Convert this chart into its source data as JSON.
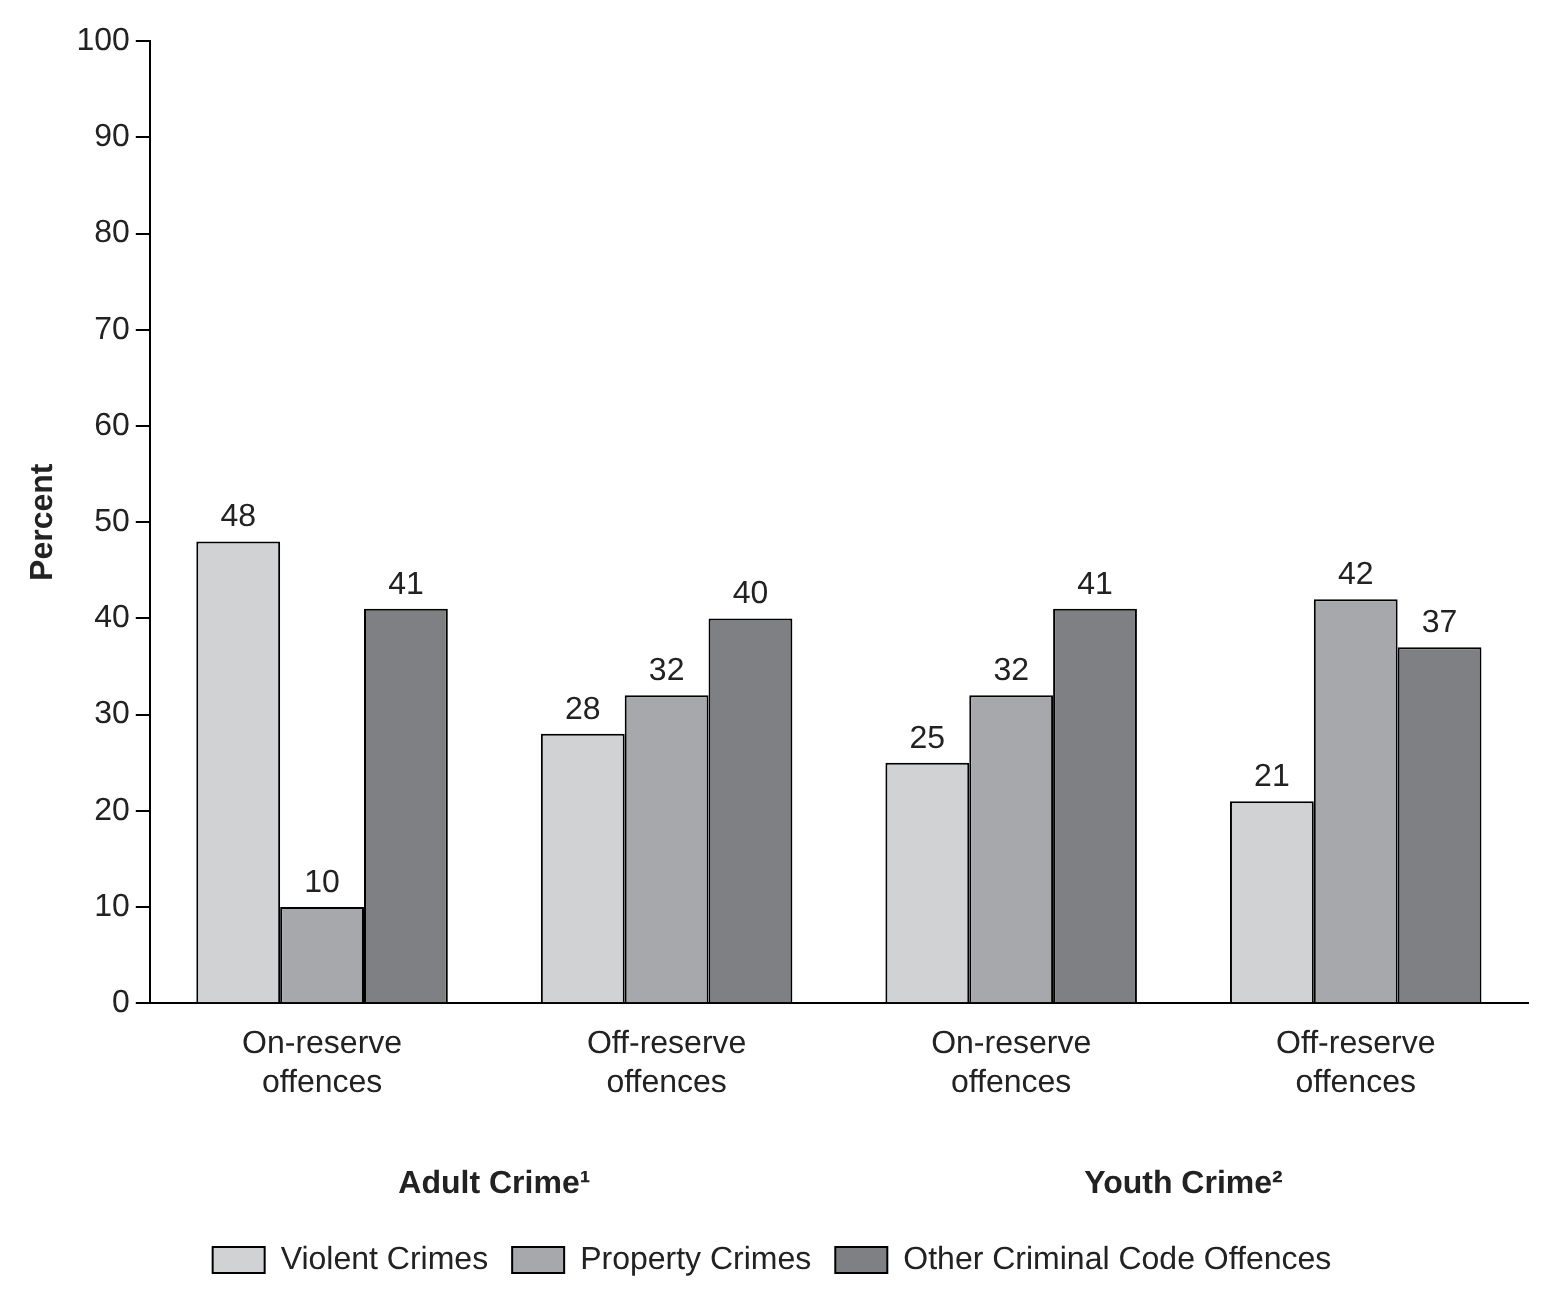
{
  "chart_data": {
    "type": "bar",
    "ylabel": "Percent",
    "categories": [
      "On-reserve offences",
      "Off-reserve offences",
      "On-reserve offences",
      "Off-reserve offences"
    ],
    "series": [
      {
        "name": "Violent Crimes",
        "color": "#d1d2d4",
        "values": [
          48,
          28,
          25,
          21
        ]
      },
      {
        "name": "Property Crimes",
        "color": "#a7a8ab",
        "values": [
          10,
          32,
          32,
          42
        ]
      },
      {
        "name": "Other Criminal Code Offences",
        "color": "#7f8083",
        "values": [
          41,
          40,
          41,
          37
        ]
      }
    ],
    "ylim": [
      0,
      100
    ],
    "yticks": [
      0,
      10,
      20,
      30,
      40,
      50,
      60,
      70,
      80,
      90,
      100
    ],
    "grid": false,
    "legend": "bottom",
    "data_labels": true,
    "annotations": [
      "Adult Crime¹",
      "Youth Crime²"
    ]
  }
}
